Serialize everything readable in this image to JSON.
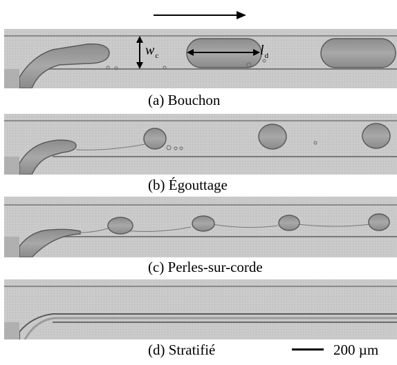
{
  "panels": [
    {
      "id": "a",
      "caption": "(a) Bouchon"
    },
    {
      "id": "b",
      "caption": "(b) Égouttage"
    },
    {
      "id": "c",
      "caption": "(c) Perles-sur-corde"
    },
    {
      "id": "d",
      "caption": "(d) Stratifié"
    }
  ],
  "annotations": {
    "channel_width_symbol": "w",
    "channel_width_subscript": "c",
    "droplet_length_symbol": "l",
    "droplet_length_subscript": "d"
  },
  "scale_bar": {
    "label": "200 µm"
  },
  "colors": {
    "channel_bg": "#c8c8c8",
    "droplet": "#9a9a9a",
    "wall": "#6a6a6a"
  }
}
